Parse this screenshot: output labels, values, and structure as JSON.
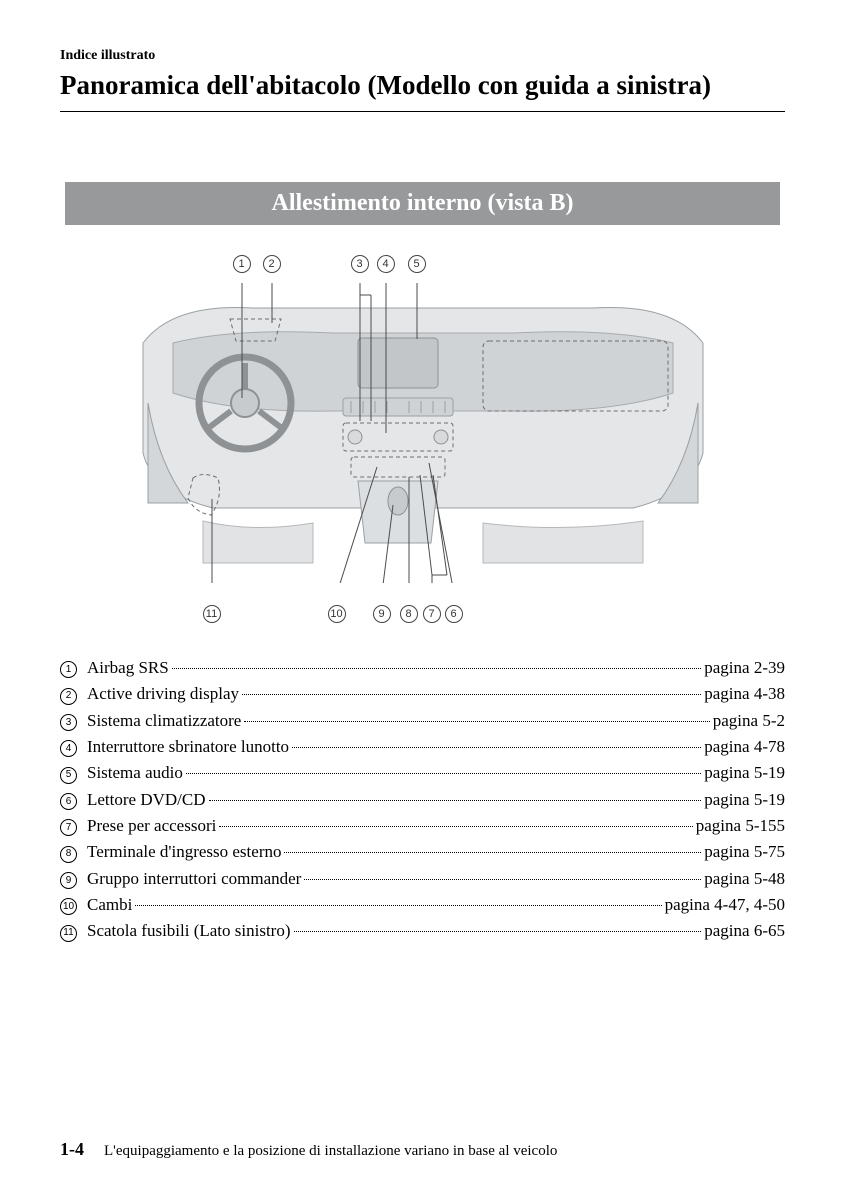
{
  "header": {
    "breadcrumb": "Indice illustrato",
    "title": "Panoramica dell'abitacolo (Modello con guida a sinistra)"
  },
  "section": {
    "banner": "Allestimento interno (vista B)"
  },
  "diagram": {
    "callout_labels": [
      "1",
      "2",
      "3",
      "4",
      "5",
      "6",
      "7",
      "8",
      "9",
      "10",
      "11"
    ],
    "dash_color": "#9aa0a4",
    "line_color": "#5a5d60",
    "body_fill": "#d8dadc",
    "body_stroke": "#8e9295"
  },
  "items": [
    {
      "n": "1",
      "label": "Airbag SRS",
      "page": "pagina 2-39"
    },
    {
      "n": "2",
      "label": "Active driving display",
      "page": "pagina 4-38"
    },
    {
      "n": "3",
      "label": "Sistema climatizzatore",
      "page": "pagina 5-2"
    },
    {
      "n": "4",
      "label": "Interruttore sbrinatore lunotto",
      "page": "pagina 4-78"
    },
    {
      "n": "5",
      "label": "Sistema audio",
      "page": "pagina 5-19"
    },
    {
      "n": "6",
      "label": "Lettore DVD/CD",
      "page": "pagina 5-19"
    },
    {
      "n": "7",
      "label": "Prese per accessori",
      "page": "pagina 5-155"
    },
    {
      "n": "8",
      "label": "Terminale d'ingresso esterno",
      "page": "pagina 5-75"
    },
    {
      "n": "9",
      "label": "Gruppo interruttori commander",
      "page": "pagina 5-48"
    },
    {
      "n": "10",
      "label": "Cambi",
      "page": "pagina 4-47, 4-50"
    },
    {
      "n": "11",
      "label": "Scatola fusibili (Lato sinistro)",
      "page": "pagina 6-65"
    }
  ],
  "footer": {
    "page_number": "1-4",
    "note": "L'equipaggiamento e la posizione di installazione variano in base al veicolo"
  }
}
